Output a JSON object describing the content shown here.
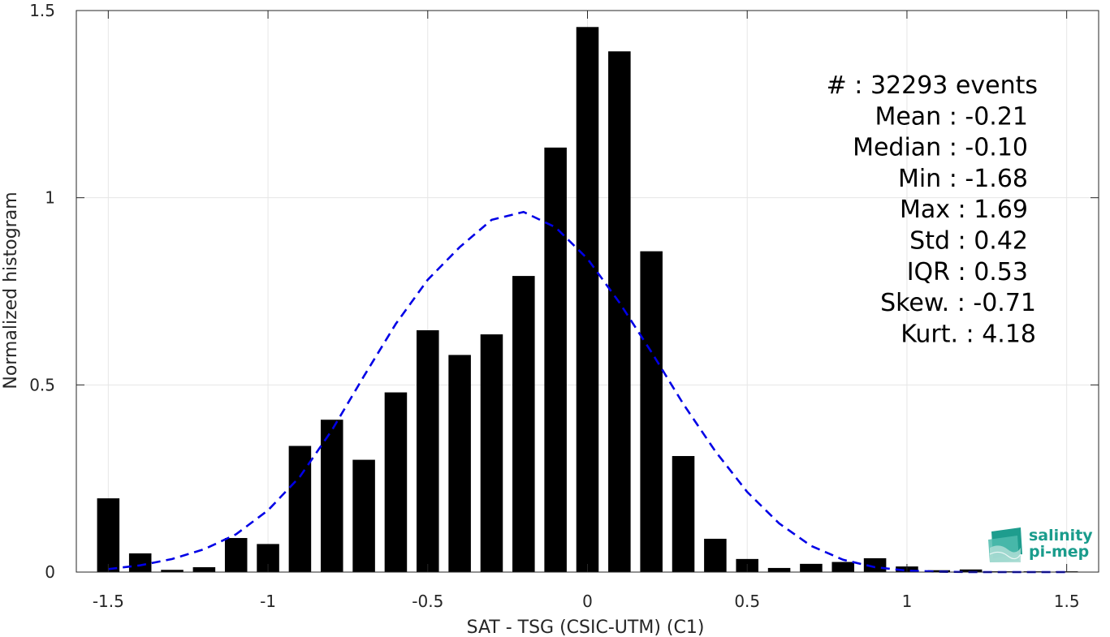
{
  "chart_data": {
    "type": "bar",
    "xlabel": "SAT - TSG (CSIC-UTM) (C1)",
    "ylabel": "Normalized histogram",
    "xlim": [
      -1.6,
      1.6
    ],
    "ylim": [
      0,
      1.5
    ],
    "xticks": [
      -1.5,
      -1,
      -0.5,
      0,
      0.5,
      1,
      1.5
    ],
    "xtick_labels": [
      "-1.5",
      "-1",
      "-0.5",
      "0",
      "0.5",
      "1",
      "1.5"
    ],
    "yticks": [
      0,
      0.5,
      1,
      1.5
    ],
    "ytick_labels": [
      "0",
      "0.5",
      "1",
      "1.5"
    ],
    "grid": true,
    "bar_width": 0.07,
    "bars": [
      {
        "x": -1.5,
        "y": 0.197
      },
      {
        "x": -1.4,
        "y": 0.05
      },
      {
        "x": -1.3,
        "y": 0.006
      },
      {
        "x": -1.2,
        "y": 0.013
      },
      {
        "x": -1.1,
        "y": 0.091
      },
      {
        "x": -1.0,
        "y": 0.075
      },
      {
        "x": -0.9,
        "y": 0.337
      },
      {
        "x": -0.8,
        "y": 0.407
      },
      {
        "x": -0.7,
        "y": 0.3
      },
      {
        "x": -0.6,
        "y": 0.48
      },
      {
        "x": -0.5,
        "y": 0.646
      },
      {
        "x": -0.4,
        "y": 0.58
      },
      {
        "x": -0.3,
        "y": 0.635
      },
      {
        "x": -0.2,
        "y": 0.791
      },
      {
        "x": -0.1,
        "y": 1.134
      },
      {
        "x": 0.0,
        "y": 1.456
      },
      {
        "x": 0.1,
        "y": 1.391
      },
      {
        "x": 0.2,
        "y": 0.857
      },
      {
        "x": 0.3,
        "y": 0.31
      },
      {
        "x": 0.4,
        "y": 0.089
      },
      {
        "x": 0.5,
        "y": 0.035
      },
      {
        "x": 0.6,
        "y": 0.011
      },
      {
        "x": 0.7,
        "y": 0.022
      },
      {
        "x": 0.8,
        "y": 0.027
      },
      {
        "x": 0.9,
        "y": 0.037
      },
      {
        "x": 1.0,
        "y": 0.015
      },
      {
        "x": 1.1,
        "y": 0.005
      },
      {
        "x": 1.2,
        "y": 0.007
      },
      {
        "x": 1.3,
        "y": 0.002
      },
      {
        "x": 1.4,
        "y": 0.002
      },
      {
        "x": 1.5,
        "y": 0.002
      }
    ],
    "fit_curve": {
      "style": "dashed",
      "color": "#0000e6",
      "x": [
        -1.5,
        -1.4,
        -1.3,
        -1.2,
        -1.1,
        -1.0,
        -0.9,
        -0.8,
        -0.7,
        -0.6,
        -0.5,
        -0.4,
        -0.3,
        -0.2,
        -0.1,
        0.0,
        0.1,
        0.2,
        0.3,
        0.4,
        0.5,
        0.6,
        0.7,
        0.8,
        0.9,
        1.0,
        1.1,
        1.2,
        1.3,
        1.4,
        1.5
      ],
      "y": [
        0.008,
        0.018,
        0.035,
        0.061,
        0.101,
        0.165,
        0.255,
        0.379,
        0.523,
        0.663,
        0.781,
        0.868,
        0.941,
        0.962,
        0.921,
        0.837,
        0.72,
        0.588,
        0.449,
        0.323,
        0.214,
        0.13,
        0.07,
        0.033,
        0.013,
        0.004,
        0.001,
        0.0,
        0.0,
        0.0,
        0.0
      ]
    },
    "annotations": [
      "#  : 32293 events",
      "Mean : -0.21",
      "Median : -0.10",
      "Min : -1.68",
      "Max : 1.69",
      "Std : 0.42",
      "IQR : 0.53",
      "Skew. : -0.71",
      "Kurt. : 4.18"
    ],
    "colors": {
      "bars": "#000000",
      "grid": "#e6e6e6",
      "axis": "#262626"
    }
  },
  "logo": {
    "line1": "salinity",
    "line2": "pi-mep"
  }
}
